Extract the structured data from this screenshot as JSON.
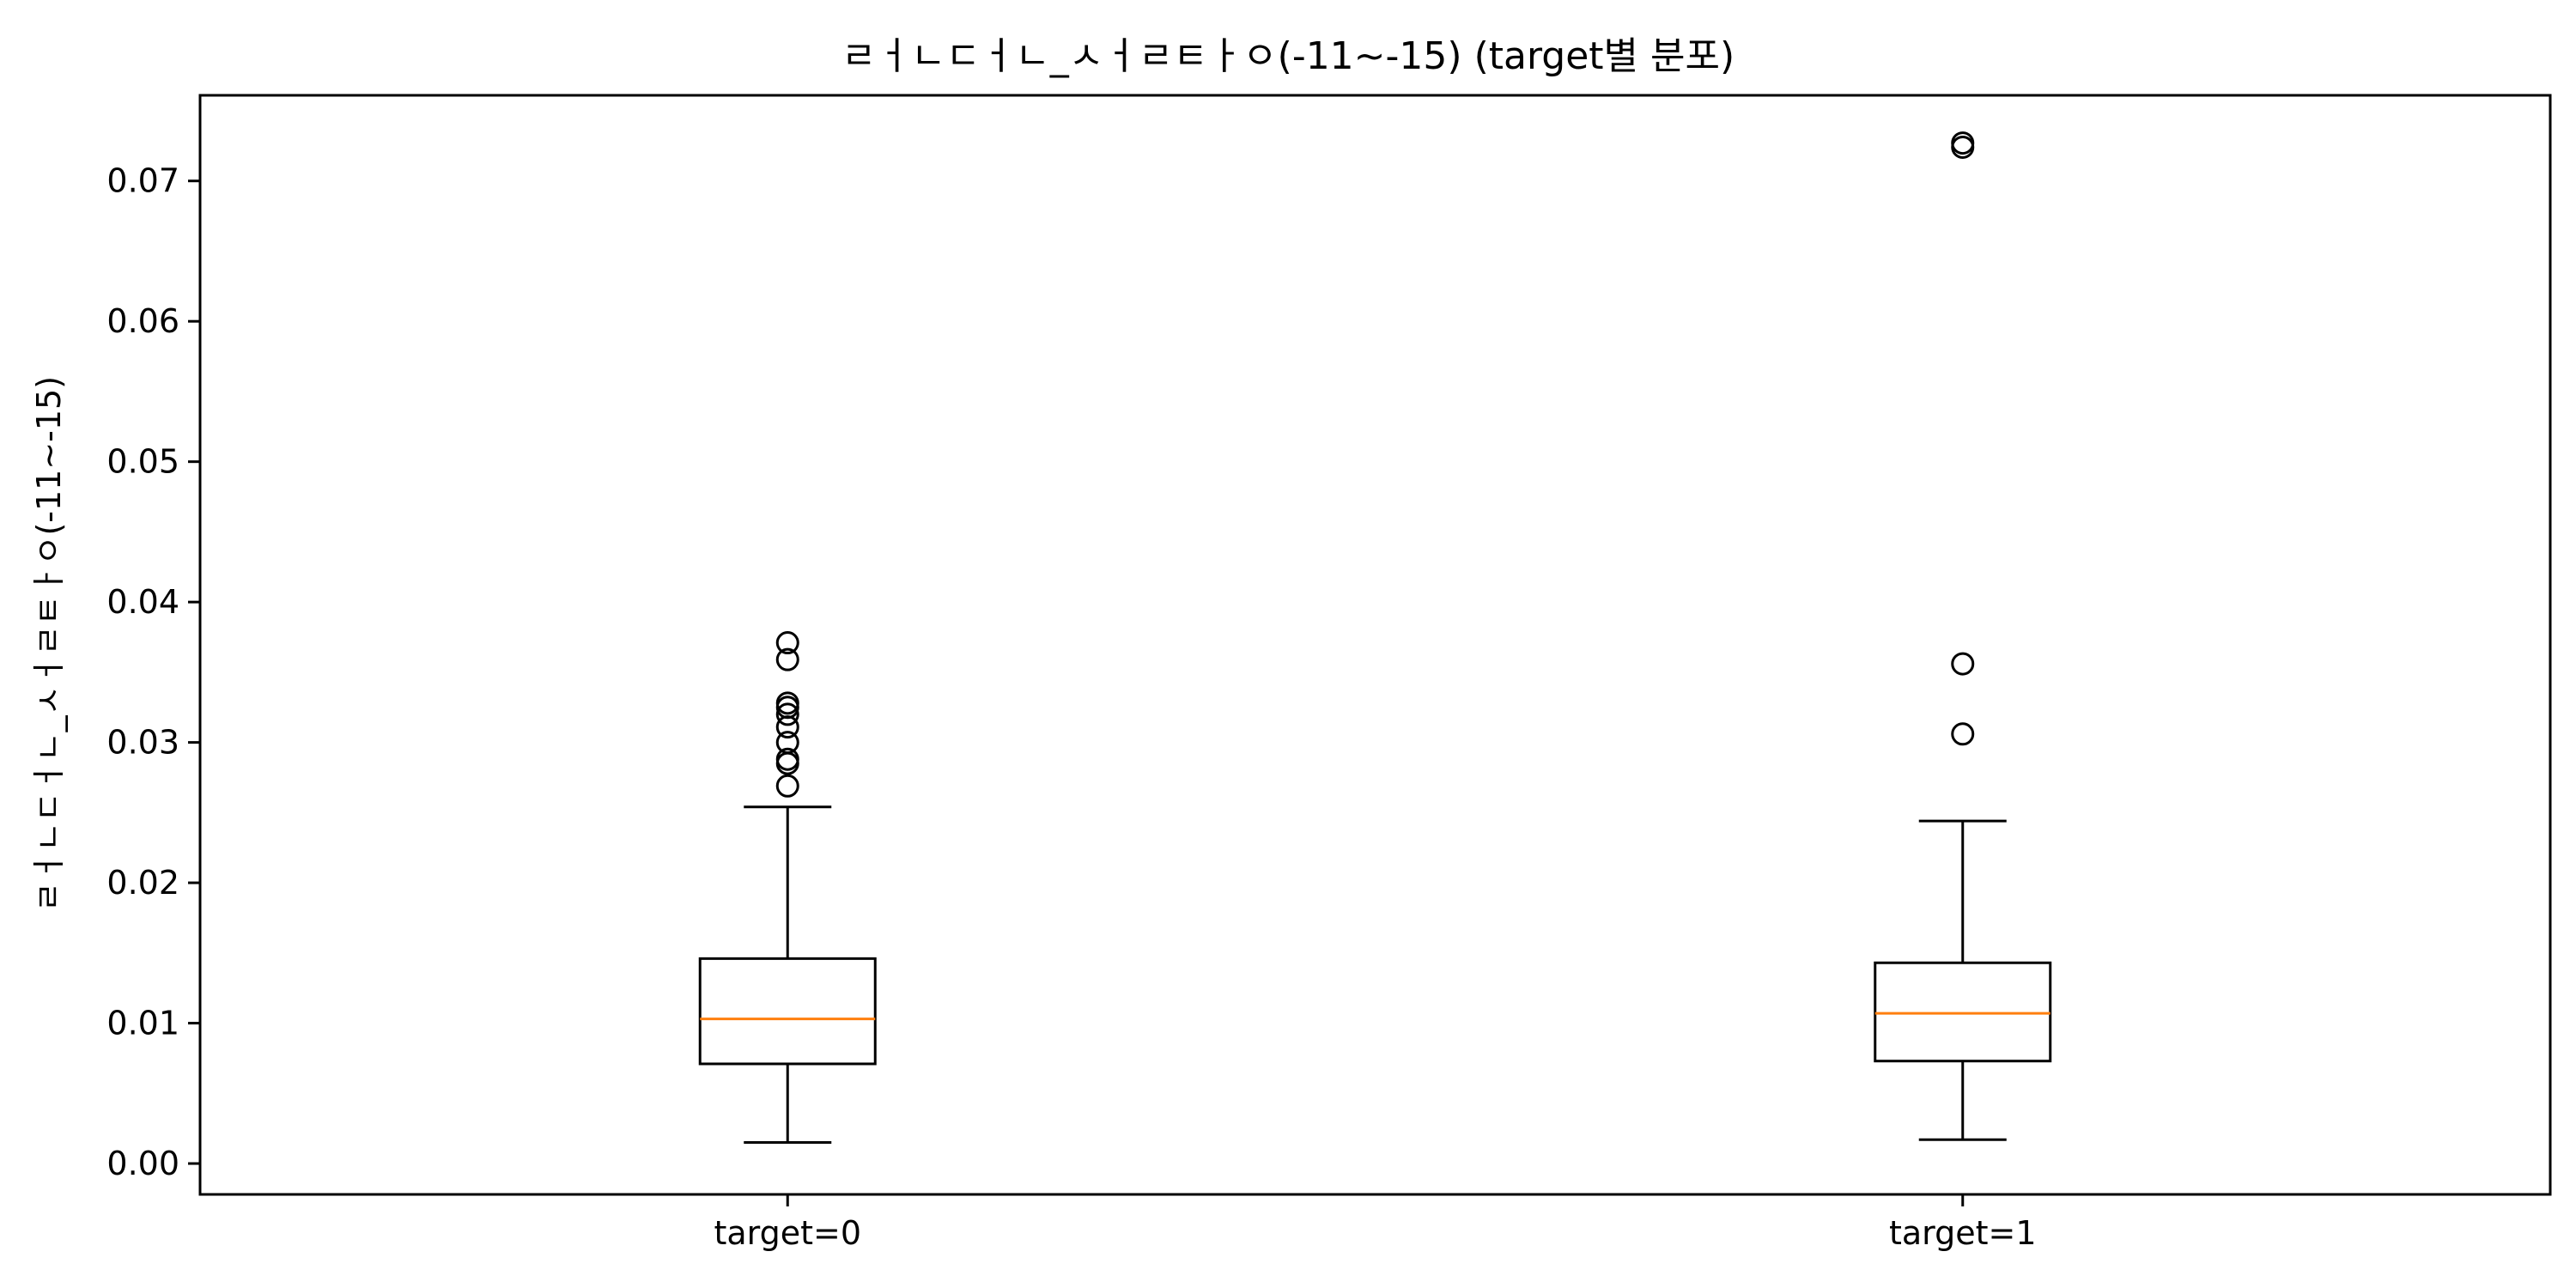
{
  "chart_data": {
    "type": "box",
    "title": "ㄹㅓㄴㄷㅓㄴ_ㅅㅓㄹㅌㅏㅇ(-11~-15) (target별 분포)",
    "xlabel": "",
    "ylabel": "ㄹㅓㄴㄷㅓㄴ_ㅅㅓㄹㅌㅏㅇ(-11~-15)",
    "categories": [
      "target=0",
      "target=1"
    ],
    "ylim": [
      -0.0022,
      0.0761
    ],
    "yticks": [
      0.0,
      0.01,
      0.02,
      0.03,
      0.04,
      0.05,
      0.06,
      0.07
    ],
    "ytick_labels": [
      "0.00",
      "0.01",
      "0.02",
      "0.03",
      "0.04",
      "0.05",
      "0.06",
      "0.07"
    ],
    "grid": false,
    "boxes": [
      {
        "name": "target=0",
        "whisker_low": 0.0015,
        "q1": 0.0071,
        "median": 0.0103,
        "q3": 0.0146,
        "whisker_high": 0.0254,
        "outliers": [
          0.0269,
          0.0285,
          0.0288,
          0.03,
          0.0311,
          0.032,
          0.0325,
          0.0328,
          0.0359,
          0.0371
        ]
      },
      {
        "name": "target=1",
        "whisker_low": 0.0017,
        "q1": 0.0073,
        "median": 0.0107,
        "q3": 0.0143,
        "whisker_high": 0.0244,
        "outliers": [
          0.0306,
          0.0356,
          0.0724,
          0.0727
        ]
      }
    ],
    "colors": {
      "box": "#000000",
      "median": "#ff7f0e",
      "background": "#ffffff"
    }
  }
}
